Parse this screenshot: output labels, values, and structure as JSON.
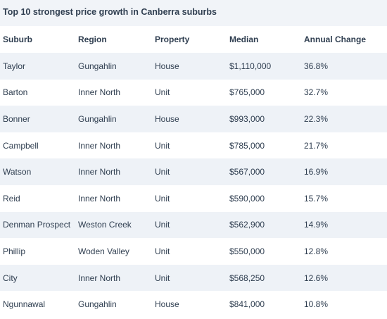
{
  "title": "Top 10 strongest price growth in Canberra suburbs",
  "columns": [
    "Suburb",
    "Region",
    "Property",
    "Median",
    "Annual Change"
  ],
  "rows": [
    [
      "Taylor",
      "Gungahlin",
      "House",
      "$1,110,000",
      "36.8%"
    ],
    [
      "Barton",
      "Inner North",
      "Unit",
      "$765,000",
      "32.7%"
    ],
    [
      "Bonner",
      "Gungahlin",
      "House",
      "$993,000",
      "22.3%"
    ],
    [
      "Campbell",
      "Inner North",
      "Unit",
      "$785,000",
      "21.7%"
    ],
    [
      "Watson",
      "Inner North",
      "Unit",
      "$567,000",
      "16.9%"
    ],
    [
      "Reid",
      "Inner North",
      "Unit",
      "$590,000",
      "15.7%"
    ],
    [
      "Denman Prospect",
      "Weston Creek",
      "Unit",
      "$562,900",
      "14.9%"
    ],
    [
      "Phillip",
      "Woden Valley",
      "Unit",
      "$550,000",
      "12.8%"
    ],
    [
      "City",
      "Inner North",
      "Unit",
      "$568,250",
      "12.6%"
    ],
    [
      "Ngunnawal",
      "Gungahlin",
      "House",
      "$841,000",
      "10.8%"
    ]
  ]
}
